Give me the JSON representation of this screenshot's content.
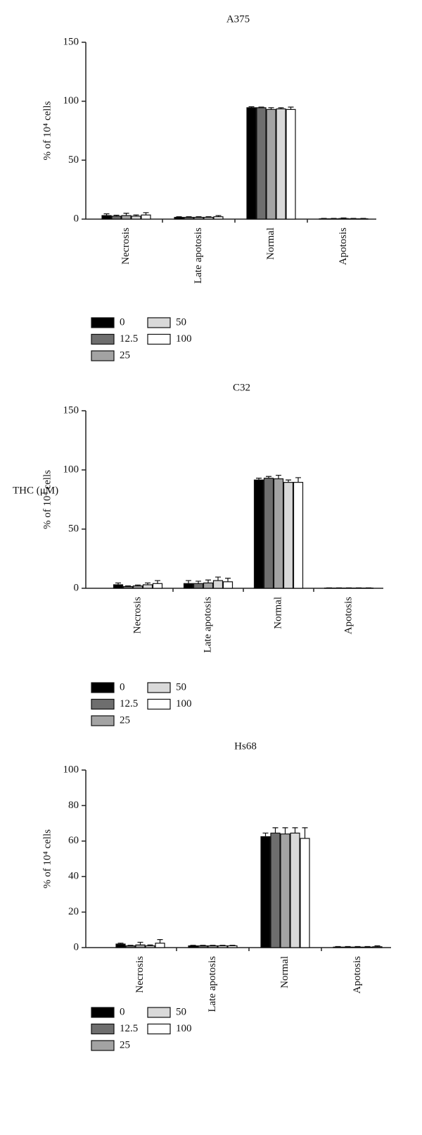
{
  "chart_data": [
    {
      "type": "bar",
      "title": "A375",
      "y_label": "% of 10⁴ cells",
      "categories": [
        "Necrosis",
        "Late apotosis",
        "Normal",
        "Apotosis"
      ],
      "ylim": [
        0,
        150
      ],
      "yticks": [
        0,
        50,
        100,
        150
      ],
      "series": [
        {
          "name": "0",
          "color": "#000000",
          "values": [
            3,
            1.5,
            94.5,
            0.3
          ],
          "errors": [
            1.5,
            0.5,
            0.8,
            0.3
          ]
        },
        {
          "name": "12.5",
          "color": "#6e6e6e",
          "values": [
            2.5,
            1.5,
            94.5,
            0.3
          ],
          "errors": [
            0.8,
            0.5,
            0.5,
            0.3
          ]
        },
        {
          "name": "25",
          "color": "#a3a3a3",
          "values": [
            3,
            1.5,
            93,
            0.5
          ],
          "errors": [
            2,
            0.5,
            1.5,
            0.5
          ]
        },
        {
          "name": "50",
          "color": "#d9d9d9",
          "values": [
            2.5,
            1.5,
            93.5,
            0.3
          ],
          "errors": [
            1,
            0.5,
            1,
            0.3
          ]
        },
        {
          "name": "100",
          "color": "#ffffff",
          "values": [
            3.5,
            2,
            93,
            0.3
          ],
          "errors": [
            2,
            1,
            2,
            0.3
          ]
        }
      ]
    },
    {
      "type": "bar",
      "title": "C32",
      "y_label": "% of 10⁴ cells",
      "annotation": "THC (μM)",
      "categories": [
        "Necrosis",
        "Late apotosis",
        "Normal",
        "Apotosis"
      ],
      "ylim": [
        0,
        150
      ],
      "yticks": [
        0,
        50,
        100,
        150
      ],
      "series": [
        {
          "name": "0",
          "color": "#000000",
          "values": [
            3,
            4,
            91.5,
            0.2
          ],
          "errors": [
            1.5,
            2.5,
            1.5,
            0.2
          ]
        },
        {
          "name": "12.5",
          "color": "#6e6e6e",
          "values": [
            1.5,
            4,
            93,
            0.2
          ],
          "errors": [
            0.5,
            2,
            1.5,
            0.2
          ]
        },
        {
          "name": "25",
          "color": "#a3a3a3",
          "values": [
            2,
            4.5,
            92.5,
            0.2
          ],
          "errors": [
            0.8,
            2.5,
            3,
            0.2
          ]
        },
        {
          "name": "50",
          "color": "#d9d9d9",
          "values": [
            3,
            6.5,
            89.5,
            0.2
          ],
          "errors": [
            1.5,
            3,
            2,
            0.2
          ]
        },
        {
          "name": "100",
          "color": "#ffffff",
          "values": [
            4,
            5.5,
            89.5,
            0.2
          ],
          "errors": [
            2.5,
            3,
            4,
            0.2
          ]
        }
      ]
    },
    {
      "type": "bar",
      "title": "Hs68",
      "y_label": "% of 10⁴ cells",
      "categories": [
        "Necrosis",
        "Late apotosis",
        "Normal",
        "Apotosis"
      ],
      "ylim": [
        0,
        100
      ],
      "yticks": [
        0,
        20,
        40,
        60,
        80,
        100
      ],
      "series": [
        {
          "name": "0",
          "color": "#000000",
          "values": [
            2,
            1,
            62.5,
            0.3
          ],
          "errors": [
            0.5,
            0.3,
            2,
            0.3
          ]
        },
        {
          "name": "12.5",
          "color": "#6e6e6e",
          "values": [
            1,
            1,
            64.5,
            0.3
          ],
          "errors": [
            0.3,
            0.3,
            3,
            0.3
          ]
        },
        {
          "name": "25",
          "color": "#a3a3a3",
          "values": [
            1.5,
            1,
            64,
            0.3
          ],
          "errors": [
            1.5,
            0.3,
            3.5,
            0.3
          ]
        },
        {
          "name": "50",
          "color": "#d9d9d9",
          "values": [
            1,
            1,
            64.5,
            0.3
          ],
          "errors": [
            0.5,
            0.3,
            3,
            0.3
          ]
        },
        {
          "name": "100",
          "color": "#ffffff",
          "values": [
            2.5,
            1,
            61.5,
            0.5
          ],
          "errors": [
            2,
            0.3,
            6,
            0.5
          ]
        }
      ]
    }
  ]
}
